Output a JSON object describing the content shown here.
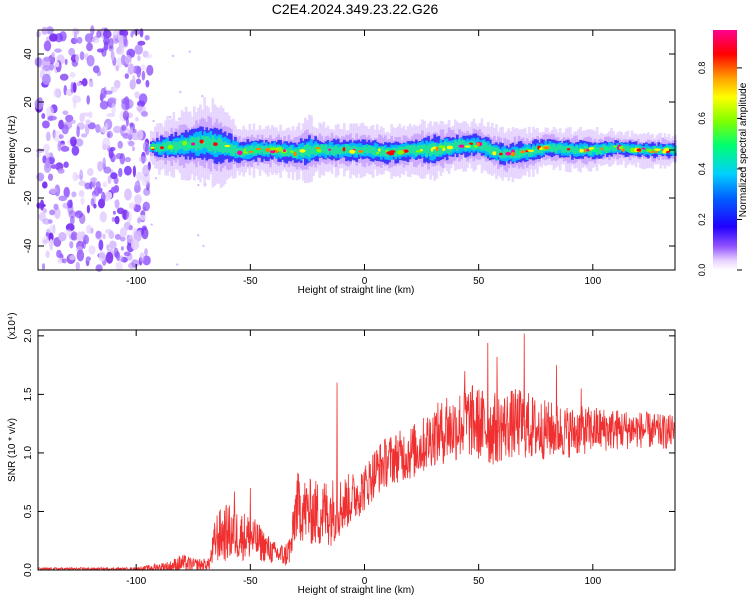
{
  "title": "C2E4.2024.349.23.22.G26",
  "colors": {
    "snr_line": "#f03030",
    "colormap": [
      "#ffffff",
      "#e6c8ff",
      "#8040ff",
      "#1000ff",
      "#00c8ff",
      "#00ff80",
      "#ffff00",
      "#ff8000",
      "#ff0000",
      "#ff00ff"
    ]
  },
  "chart_data": [
    {
      "type": "heatmap",
      "name": "spectrogram",
      "xlabel": "Height of straight line (km)",
      "ylabel": "Frequency (Hz)",
      "xlim": [
        -143,
        136
      ],
      "ylim": [
        -50,
        50
      ],
      "x_ticks": [
        -100,
        -50,
        0,
        50,
        100
      ],
      "y_ticks": [
        -40,
        -20,
        0,
        20,
        40
      ],
      "colorbar": {
        "label": "Normalized spectral amplitude",
        "range": [
          0,
          0.95
        ],
        "ticks": [
          0,
          0.2,
          0.4,
          0.6,
          0.8
        ],
        "tick_labels": [
          "0.0",
          "0.2",
          "0.4",
          "0.6",
          "0.8"
        ]
      },
      "noise_region": {
        "x_from": -143,
        "x_to": -94,
        "y_from": -50,
        "y_to": 50
      },
      "signal_track": {
        "x": [
          -94,
          -90,
          -80,
          -70,
          -65,
          -60,
          -55,
          -50,
          -40,
          -30,
          -25,
          -20,
          -10,
          0,
          10,
          20,
          30,
          40,
          50,
          55,
          60,
          70,
          80,
          90,
          100,
          110,
          120,
          130,
          136
        ],
        "center_hz": [
          1,
          1,
          2,
          3,
          2,
          1,
          -1,
          0,
          0,
          -1,
          0,
          0,
          0,
          0,
          -1,
          0,
          0,
          2,
          2,
          0,
          -2,
          -1,
          1,
          0,
          0,
          1,
          0,
          0,
          0
        ],
        "half_width_hz": [
          2,
          3,
          4,
          5,
          5,
          4,
          3,
          3,
          3,
          3,
          4,
          3,
          3,
          3,
          3,
          3,
          4,
          3,
          3,
          3,
          3,
          3,
          2.5,
          2.5,
          2.5,
          2,
          2,
          2,
          2
        ]
      }
    },
    {
      "type": "line",
      "name": "snr",
      "xlabel": "Height of straight line (km)",
      "ylabel": "SNR (10 * v/v)",
      "y_scale_label": "(x10⁴)",
      "xlim": [
        -143,
        136
      ],
      "ylim": [
        0,
        2.05
      ],
      "x_ticks": [
        -100,
        -50,
        0,
        50,
        100
      ],
      "y_ticks": [
        0,
        0.5,
        1.0,
        1.5,
        2.0
      ],
      "y_tick_labels": [
        "0.0",
        "0.5",
        "1.0",
        "1.5",
        "2.0"
      ],
      "envelope": {
        "x": [
          -143,
          -100,
          -85,
          -80,
          -75,
          -68,
          -65,
          -60,
          -55,
          -50,
          -45,
          -40,
          -35,
          -32,
          -30,
          -25,
          -20,
          -15,
          -10,
          -5,
          0,
          5,
          10,
          15,
          20,
          25,
          30,
          35,
          40,
          45,
          50,
          55,
          60,
          65,
          70,
          75,
          80,
          90,
          100,
          110,
          120,
          130,
          136
        ],
        "mean": [
          0.01,
          0.01,
          0.03,
          0.06,
          0.04,
          0.05,
          0.28,
          0.32,
          0.3,
          0.28,
          0.22,
          0.15,
          0.12,
          0.2,
          0.55,
          0.5,
          0.48,
          0.5,
          0.55,
          0.62,
          0.7,
          0.85,
          0.93,
          0.97,
          1.0,
          1.05,
          1.15,
          1.18,
          1.22,
          1.28,
          1.25,
          1.2,
          1.22,
          1.25,
          1.25,
          1.2,
          1.2,
          1.18,
          1.2,
          1.2,
          1.2,
          1.18,
          1.18
        ],
        "spread": [
          0.01,
          0.01,
          0.05,
          0.08,
          0.06,
          0.05,
          0.22,
          0.25,
          0.22,
          0.2,
          0.15,
          0.1,
          0.1,
          0.15,
          0.3,
          0.28,
          0.3,
          0.3,
          0.25,
          0.22,
          0.2,
          0.22,
          0.22,
          0.22,
          0.24,
          0.24,
          0.26,
          0.28,
          0.3,
          0.32,
          0.32,
          0.32,
          0.3,
          0.3,
          0.3,
          0.28,
          0.25,
          0.22,
          0.2,
          0.18,
          0.16,
          0.15,
          0.15
        ]
      },
      "peaks": [
        {
          "x": -57,
          "y": 0.67
        },
        {
          "x": -50,
          "y": 0.7
        },
        {
          "x": -12,
          "y": 1.6
        },
        {
          "x": 36,
          "y": 1.47
        },
        {
          "x": 44,
          "y": 1.7
        },
        {
          "x": 54,
          "y": 1.94
        },
        {
          "x": 58,
          "y": 1.82
        },
        {
          "x": 70,
          "y": 2.02
        },
        {
          "x": 84,
          "y": 1.75
        },
        {
          "x": 95,
          "y": 1.55
        }
      ]
    }
  ]
}
